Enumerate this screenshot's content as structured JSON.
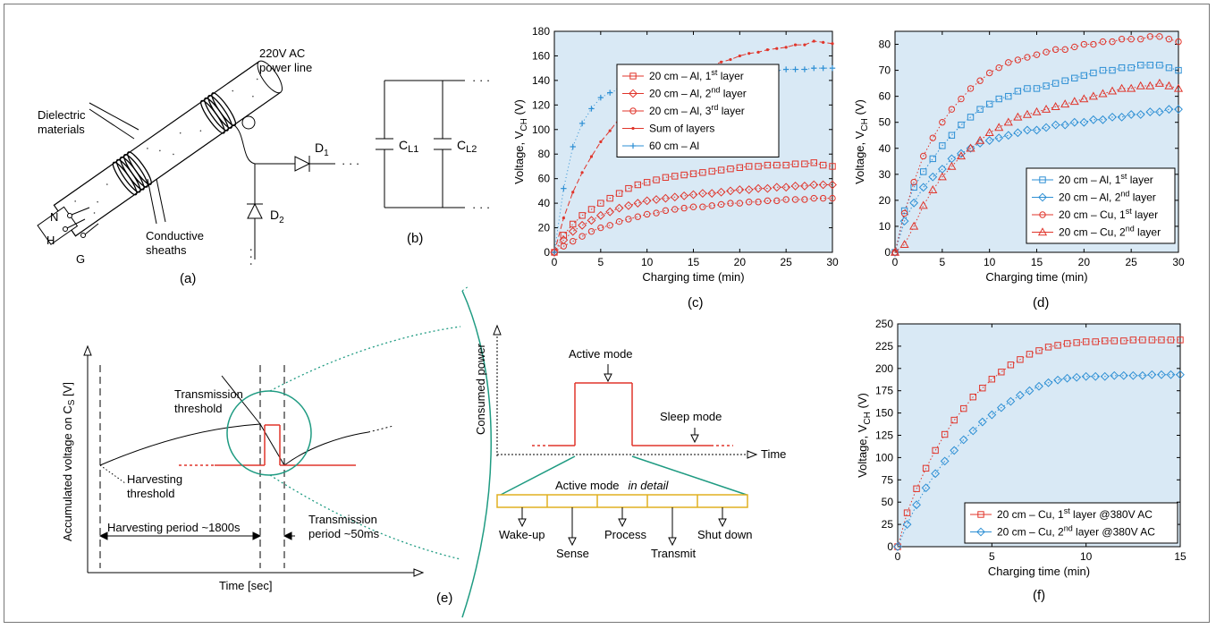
{
  "colors": {
    "red": "#e0352b",
    "blue": "#2d8fd4",
    "teal": "#1f9b82",
    "gold": "#e0b020",
    "plotbg": "#d9e9f5"
  },
  "panel_a": {
    "label": "(a)",
    "power_line": "220V AC",
    "power_line2": "power line",
    "dielectric": "Dielectric",
    "dielectric2": "materials",
    "conductive": "Conductive",
    "conductive2": "sheaths",
    "n": "N",
    "h": "H",
    "g": "G",
    "d1": "D",
    "d1sub": "1",
    "d2": "D",
    "d2sub": "2",
    "dots": "· · ·"
  },
  "panel_b": {
    "label": "(b)",
    "c1": "C",
    "c1sub": "L1",
    "c2": "C",
    "c2sub": "L2",
    "dots": "· · ·"
  },
  "panel_e": {
    "label": "(e)",
    "yaxis": "Accumulated voltage on C",
    "yaxis_sub": "S",
    "yaxis_unit": " [V]",
    "xaxis": "Time [sec]",
    "tx_thr1": "Transmission",
    "tx_thr2": "threshold",
    "hv_thr1": "Harvesting",
    "hv_thr2": "threshold",
    "hv_period": "Harvesting period ~1800s",
    "tx_period1": "Transmission",
    "tx_period2": "period ~50ms",
    "power_y": "Consumed power",
    "time": "Time",
    "active": "Active mode",
    "sleep": "Sleep mode",
    "active_detail": "Active mode",
    "in_detail": "in detail",
    "steps": [
      "Wake-up",
      "Sense",
      "Process",
      "Transmit",
      "Shut down"
    ]
  },
  "chart_data": [
    {
      "id": "c",
      "type": "line",
      "label": "(c)",
      "xlabel": "Charging time (min)",
      "ylabel": "Voltage, V",
      "ylabel_sub": "CH",
      "ylabel_unit": " (V)",
      "xlim": [
        0,
        30
      ],
      "ylim": [
        0,
        180
      ],
      "xticks": [
        0,
        5,
        10,
        15,
        20,
        25,
        30
      ],
      "yticks": [
        0,
        20,
        40,
        60,
        80,
        100,
        120,
        140,
        160,
        180
      ],
      "legend": [
        {
          "name": "20 cm – Al, 1",
          "sup": "st",
          "tail": " layer",
          "color": "#e0352b",
          "marker": "square"
        },
        {
          "name": "20 cm – Al, 2",
          "sup": "nd",
          "tail": " layer",
          "color": "#e0352b",
          "marker": "diamond"
        },
        {
          "name": "20 cm – Al, 3",
          "sup": "rd",
          "tail": " layer",
          "color": "#e0352b",
          "marker": "circle"
        },
        {
          "name": "Sum of layers",
          "sup": "",
          "tail": "",
          "color": "#e0352b",
          "marker": "dot"
        },
        {
          "name": "60 cm – Al",
          "sup": "",
          "tail": "",
          "color": "#2d8fd4",
          "marker": "plus"
        }
      ],
      "series": [
        {
          "name": "20 cm – Al, 1st layer",
          "marker": "square",
          "color": "#e0352b",
          "dashed": true,
          "x": [
            0,
            1,
            2,
            3,
            4,
            5,
            6,
            7,
            8,
            9,
            10,
            11,
            12,
            13,
            14,
            15,
            16,
            17,
            18,
            19,
            20,
            21,
            22,
            23,
            24,
            25,
            26,
            27,
            28,
            29,
            30
          ],
          "y": [
            0,
            14,
            23,
            30,
            35,
            40,
            44,
            48,
            52,
            55,
            57,
            59,
            61,
            62,
            63,
            64,
            65,
            66,
            67,
            68,
            69,
            70,
            70,
            71,
            71,
            71,
            72,
            72,
            73,
            71,
            70
          ]
        },
        {
          "name": "20 cm – Al, 2nd layer",
          "marker": "diamond",
          "color": "#e0352b",
          "dashed": true,
          "x": [
            0,
            1,
            2,
            3,
            4,
            5,
            6,
            7,
            8,
            9,
            10,
            11,
            12,
            13,
            14,
            15,
            16,
            17,
            18,
            19,
            20,
            21,
            22,
            23,
            24,
            25,
            26,
            27,
            28,
            29,
            30
          ],
          "y": [
            0,
            10,
            17,
            22,
            26,
            30,
            33,
            36,
            38,
            40,
            42,
            43,
            44,
            45,
            46,
            47,
            48,
            48,
            49,
            50,
            51,
            51,
            52,
            52,
            53,
            53,
            54,
            54,
            55,
            55,
            55
          ]
        },
        {
          "name": "20 cm – Al, 3rd layer",
          "marker": "circle",
          "color": "#e0352b",
          "dashed": true,
          "x": [
            0,
            1,
            2,
            3,
            4,
            5,
            6,
            7,
            8,
            9,
            10,
            11,
            12,
            13,
            14,
            15,
            16,
            17,
            18,
            19,
            20,
            21,
            22,
            23,
            24,
            25,
            26,
            27,
            28,
            29,
            30
          ],
          "y": [
            0,
            5,
            9,
            13,
            17,
            20,
            22,
            25,
            27,
            29,
            31,
            32,
            34,
            35,
            36,
            37,
            37,
            38,
            39,
            40,
            40,
            41,
            41,
            42,
            42,
            43,
            43,
            43,
            44,
            44,
            44
          ]
        },
        {
          "name": "Sum of layers",
          "marker": "dot",
          "color": "#e0352b",
          "dashed": true,
          "x": [
            0,
            1,
            2,
            3,
            4,
            5,
            6,
            7,
            8,
            9,
            10,
            11,
            12,
            13,
            14,
            15,
            16,
            17,
            18,
            19,
            20,
            21,
            22,
            23,
            24,
            25,
            26,
            27,
            28,
            29,
            30
          ],
          "y": [
            0,
            28,
            49,
            65,
            78,
            90,
            99,
            109,
            117,
            124,
            130,
            134,
            139,
            142,
            145,
            148,
            150,
            152,
            155,
            157,
            160,
            162,
            163,
            165,
            166,
            167,
            169,
            169,
            172,
            171,
            170
          ]
        },
        {
          "name": "60 cm – Al",
          "marker": "plus",
          "color": "#2d8fd4",
          "dashed": false,
          "x": [
            0,
            1,
            2,
            3,
            4,
            5,
            6,
            7,
            8,
            9,
            10,
            11,
            12,
            13,
            14,
            15,
            16,
            17,
            18,
            19,
            20,
            21,
            22,
            23,
            24,
            25,
            26,
            27,
            28,
            29,
            30
          ],
          "y": [
            0,
            52,
            86,
            105,
            117,
            126,
            130,
            133,
            135,
            137,
            139,
            140,
            141,
            142,
            143,
            143,
            144,
            145,
            146,
            146,
            147,
            147,
            148,
            148,
            148,
            149,
            149,
            149,
            150,
            150,
            150
          ]
        }
      ]
    },
    {
      "id": "d",
      "type": "line",
      "label": "(d)",
      "xlabel": "Charging time (min)",
      "ylabel": "Voltage, V",
      "ylabel_sub": "CH",
      "ylabel_unit": " (V)",
      "xlim": [
        0,
        30
      ],
      "ylim": [
        0,
        85
      ],
      "xticks": [
        0,
        5,
        10,
        15,
        20,
        25,
        30
      ],
      "yticks": [
        0,
        10,
        20,
        30,
        40,
        50,
        60,
        70,
        80
      ],
      "legend": [
        {
          "name": "20 cm – Al, 1",
          "sup": "st",
          "tail": " layer",
          "color": "#2d8fd4",
          "marker": "square"
        },
        {
          "name": "20 cm – Al, 2",
          "sup": "nd",
          "tail": " layer",
          "color": "#2d8fd4",
          "marker": "diamond"
        },
        {
          "name": "20 cm – Cu, 1",
          "sup": "st",
          "tail": " layer",
          "color": "#e0352b",
          "marker": "circle"
        },
        {
          "name": "20 cm – Cu, 2",
          "sup": "nd",
          "tail": " layer",
          "color": "#e0352b",
          "marker": "triangle"
        }
      ],
      "series": [
        {
          "name": "20 cm – Al, 1st layer",
          "marker": "square",
          "color": "#2d8fd4",
          "dashed": true,
          "x": [
            0,
            1,
            2,
            3,
            4,
            5,
            6,
            7,
            8,
            9,
            10,
            11,
            12,
            13,
            14,
            15,
            16,
            17,
            18,
            19,
            20,
            21,
            22,
            23,
            24,
            25,
            26,
            27,
            28,
            29,
            30
          ],
          "y": [
            0,
            16,
            25,
            31,
            36,
            41,
            45,
            49,
            52,
            55,
            57,
            59,
            60,
            62,
            63,
            63,
            64,
            65,
            66,
            67,
            68,
            69,
            70,
            70,
            71,
            71,
            72,
            72,
            72,
            71,
            70
          ]
        },
        {
          "name": "20 cm – Al, 2nd layer",
          "marker": "diamond",
          "color": "#2d8fd4",
          "dashed": true,
          "x": [
            0,
            1,
            2,
            3,
            4,
            5,
            6,
            7,
            8,
            9,
            10,
            11,
            12,
            13,
            14,
            15,
            16,
            17,
            18,
            19,
            20,
            21,
            22,
            23,
            24,
            25,
            26,
            27,
            28,
            29,
            30
          ],
          "y": [
            0,
            12,
            19,
            25,
            29,
            32,
            36,
            38,
            40,
            42,
            43,
            44,
            45,
            46,
            47,
            47,
            48,
            49,
            49,
            50,
            50,
            51,
            51,
            52,
            52,
            53,
            53,
            54,
            54,
            55,
            55
          ]
        },
        {
          "name": "20 cm – Cu, 1st layer",
          "marker": "circle",
          "color": "#e0352b",
          "dashed": true,
          "x": [
            0,
            1,
            2,
            3,
            4,
            5,
            6,
            7,
            8,
            9,
            10,
            11,
            12,
            13,
            14,
            15,
            16,
            17,
            18,
            19,
            20,
            21,
            22,
            23,
            24,
            25,
            26,
            27,
            28,
            29,
            30
          ],
          "y": [
            0,
            15,
            27,
            37,
            44,
            50,
            55,
            59,
            63,
            66,
            69,
            71,
            73,
            74,
            75,
            76,
            77,
            78,
            78,
            79,
            80,
            80,
            81,
            81,
            82,
            82,
            82,
            83,
            83,
            82,
            81
          ]
        },
        {
          "name": "20 cm – Cu, 2nd layer",
          "marker": "triangle",
          "color": "#e0352b",
          "dashed": true,
          "x": [
            0,
            1,
            2,
            3,
            4,
            5,
            6,
            7,
            8,
            9,
            10,
            11,
            12,
            13,
            14,
            15,
            16,
            17,
            18,
            19,
            20,
            21,
            22,
            23,
            24,
            25,
            26,
            27,
            28,
            29,
            30
          ],
          "y": [
            0,
            3,
            10,
            18,
            24,
            29,
            33,
            37,
            40,
            43,
            46,
            48,
            50,
            52,
            53,
            54,
            55,
            56,
            57,
            58,
            59,
            60,
            61,
            62,
            63,
            63,
            64,
            64,
            65,
            64,
            63
          ]
        }
      ]
    },
    {
      "id": "f",
      "type": "line",
      "label": "(f)",
      "xlabel": "Charging time (min)",
      "ylabel": "Voltage, V",
      "ylabel_sub": "CH",
      "ylabel_unit": " (V)",
      "xlim": [
        0,
        15
      ],
      "ylim": [
        0,
        250
      ],
      "xticks": [
        0,
        5,
        10,
        15
      ],
      "yticks": [
        0,
        25,
        50,
        75,
        100,
        125,
        150,
        175,
        200,
        225,
        250
      ],
      "legend": [
        {
          "name": "20 cm – Cu, 1",
          "sup": "st",
          "tail": " layer @380V AC",
          "color": "#e0352b",
          "marker": "square"
        },
        {
          "name": "20 cm – Cu, 2",
          "sup": "nd",
          "tail": " layer @380V AC",
          "color": "#2d8fd4",
          "marker": "diamond"
        }
      ],
      "series": [
        {
          "name": "20 cm – Cu, 1st layer @380V AC",
          "marker": "square",
          "color": "#e0352b",
          "dashed": true,
          "x": [
            0,
            0.5,
            1,
            1.5,
            2,
            2.5,
            3,
            3.5,
            4,
            4.5,
            5,
            5.5,
            6,
            6.5,
            7,
            7.5,
            8,
            8.5,
            9,
            9.5,
            10,
            10.5,
            11,
            11.5,
            12,
            12.5,
            13,
            13.5,
            14,
            14.5,
            15
          ],
          "y": [
            0,
            38,
            65,
            88,
            108,
            126,
            142,
            155,
            168,
            178,
            188,
            196,
            204,
            210,
            216,
            220,
            224,
            226,
            228,
            229,
            230,
            230,
            231,
            231,
            231,
            232,
            232,
            232,
            232,
            232,
            232
          ]
        },
        {
          "name": "20 cm – Cu, 2nd layer @380V AC",
          "marker": "diamond",
          "color": "#2d8fd4",
          "dashed": true,
          "x": [
            0,
            0.5,
            1,
            1.5,
            2,
            2.5,
            3,
            3.5,
            4,
            4.5,
            5,
            5.5,
            6,
            6.5,
            7,
            7.5,
            8,
            8.5,
            9,
            9.5,
            10,
            10.5,
            11,
            11.5,
            12,
            12.5,
            13,
            13.5,
            14,
            14.5,
            15
          ],
          "y": [
            0,
            25,
            47,
            66,
            82,
            96,
            108,
            120,
            130,
            140,
            148,
            156,
            163,
            170,
            175,
            180,
            184,
            187,
            189,
            190,
            191,
            191,
            191,
            192,
            192,
            192,
            192,
            193,
            193,
            193,
            193
          ]
        }
      ]
    }
  ]
}
